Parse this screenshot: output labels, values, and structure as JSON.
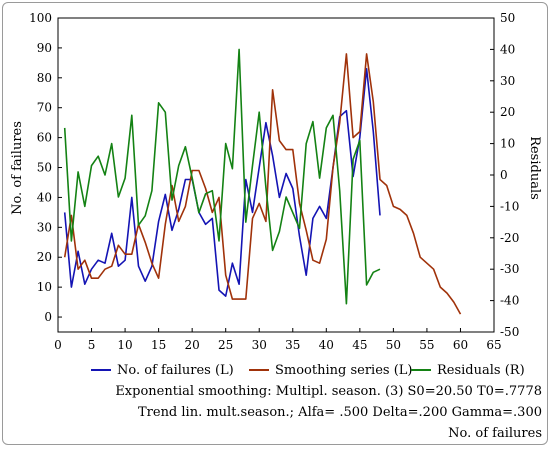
{
  "chart_data": {
    "type": "line",
    "title": "",
    "xlabel": "",
    "ylabel": "No. of failures",
    "y2label": "Residuals",
    "xlim": [
      0,
      65
    ],
    "ylim": [
      -5,
      100
    ],
    "y2lim": [
      -50,
      50
    ],
    "x_ticks": [
      0,
      5,
      10,
      15,
      20,
      25,
      30,
      35,
      40,
      45,
      50,
      55,
      60,
      65
    ],
    "y_ticks": [
      0,
      10,
      20,
      30,
      40,
      50,
      60,
      70,
      80,
      90,
      100
    ],
    "y2_ticks": [
      -50,
      -40,
      -30,
      -20,
      -10,
      0,
      10,
      20,
      30,
      40,
      50
    ],
    "grid": false,
    "legend_position": "bottom",
    "series": [
      {
        "name": "No. of failures (L)",
        "axis": "left",
        "color": "#1414b4",
        "x": [
          1,
          2,
          3,
          4,
          5,
          6,
          7,
          8,
          9,
          10,
          11,
          12,
          13,
          14,
          15,
          16,
          17,
          18,
          19,
          20,
          21,
          22,
          23,
          24,
          25,
          26,
          27,
          28,
          29,
          30,
          31,
          32,
          33,
          34,
          35,
          36,
          37,
          38,
          39,
          40,
          41,
          42,
          43,
          44,
          45,
          46,
          47,
          48
        ],
        "values": [
          35,
          10,
          22,
          11,
          16,
          19,
          18,
          28,
          17,
          19,
          40,
          17,
          12,
          17,
          32,
          41,
          29,
          36,
          46,
          46,
          35,
          31,
          33,
          9,
          7,
          18,
          11,
          46,
          35,
          50,
          65,
          54,
          40,
          48,
          43,
          27,
          14,
          33,
          37,
          33,
          50,
          67,
          69,
          47,
          60,
          83,
          62,
          34
        ]
      },
      {
        "name": "Smoothing series (L)",
        "axis": "left",
        "color": "#a0320a",
        "x": [
          1,
          2,
          3,
          4,
          5,
          6,
          7,
          8,
          9,
          10,
          11,
          12,
          13,
          14,
          15,
          16,
          17,
          18,
          19,
          20,
          21,
          22,
          23,
          24,
          25,
          26,
          27,
          28,
          29,
          30,
          31,
          32,
          33,
          34,
          35,
          36,
          37,
          38,
          39,
          40,
          41,
          42,
          43,
          44,
          45,
          46,
          47,
          48,
          49,
          50,
          51,
          52,
          53,
          54,
          55,
          56,
          57,
          58,
          59,
          60
        ],
        "values": [
          20,
          34,
          16,
          19,
          13,
          13,
          16,
          17,
          24,
          21,
          21,
          31,
          25,
          18,
          13,
          31,
          44,
          32,
          37,
          49,
          49,
          43,
          35,
          40,
          14,
          6,
          6,
          6,
          33,
          38,
          32,
          76,
          59,
          56,
          56,
          38,
          29,
          19,
          18,
          26,
          50,
          65,
          88,
          60,
          62,
          88,
          72,
          46,
          44,
          37,
          36,
          34,
          28,
          20,
          18,
          16,
          10,
          8,
          5,
          1
        ]
      },
      {
        "name": "Residuals (R)",
        "axis": "right",
        "color": "#148214",
        "x": [
          1,
          2,
          3,
          4,
          5,
          6,
          7,
          8,
          9,
          10,
          11,
          12,
          13,
          14,
          15,
          16,
          17,
          18,
          19,
          20,
          21,
          22,
          23,
          24,
          25,
          26,
          27,
          28,
          29,
          30,
          31,
          32,
          33,
          34,
          35,
          36,
          37,
          38,
          39,
          40,
          41,
          42,
          43,
          44,
          45,
          46,
          47,
          48
        ],
        "values": [
          15,
          -21,
          1,
          -10,
          3,
          6,
          0,
          10,
          -7,
          -1,
          19,
          -16,
          -13,
          -5,
          23,
          20,
          -8,
          3,
          9,
          -1,
          -12,
          -6,
          -5,
          -21,
          10,
          2,
          40,
          -15,
          3,
          20,
          -4,
          -24,
          -18,
          -7,
          -12,
          -17,
          10,
          17,
          -1,
          15,
          19,
          -5,
          -41,
          5,
          11,
          -35,
          -31,
          -30
        ]
      }
    ]
  },
  "legend": [
    {
      "label": "No. of failures (L)",
      "color": "#1414b4"
    },
    {
      "label": "Smoothing series (L)",
      "color": "#a0320a"
    },
    {
      "label": "Residuals (R)",
      "color": "#148214"
    }
  ],
  "notes": {
    "line1": "Exponential smoothing: Multipl. season. (3) S0=20.50 T0=.7778",
    "line2": "Trend lin. mult.season.;  Alfa= .500 Delta=.200 Gamma=.300",
    "line3": "No. of failures"
  }
}
